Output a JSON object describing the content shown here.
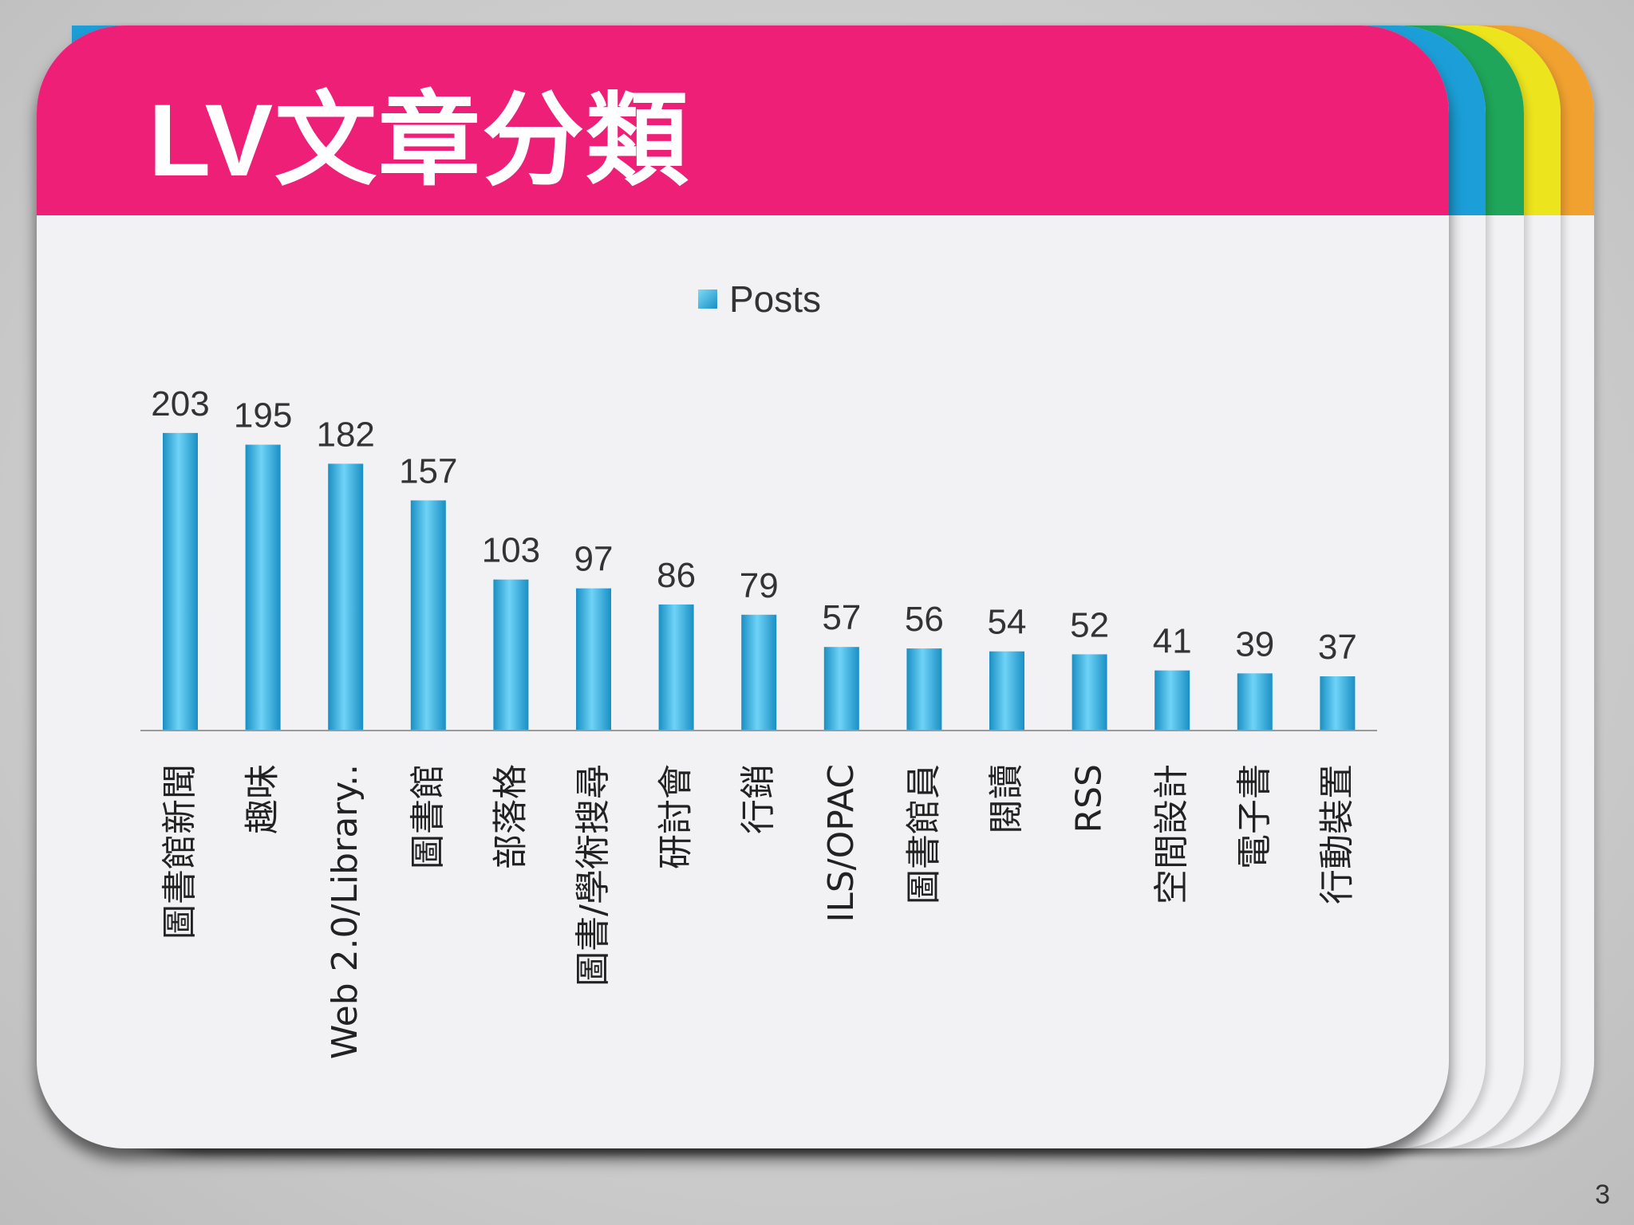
{
  "slide": {
    "title": "LV文章分類",
    "page_number": "3"
  },
  "colors": {
    "title_bar": "#ee1f77",
    "tab_blue": "#1c9fd8",
    "tab_green": "#1fa65a",
    "tab_yellow": "#ece51d",
    "tab_orange": "#f0a130",
    "bar": "#29b1e6"
  },
  "chart_data": {
    "type": "bar",
    "series": [
      {
        "name": "Posts",
        "values": [
          203,
          195,
          182,
          157,
          103,
          97,
          86,
          79,
          57,
          56,
          54,
          52,
          41,
          39,
          37
        ]
      }
    ],
    "categories": [
      "圖書館新聞",
      "趣味",
      "Web 2.0/Library..",
      "圖書館",
      "部落格",
      "圖書/學術搜尋",
      "研討會",
      "行銷",
      "ILS/OPAC",
      "圖書館員",
      "閱讀",
      "RSS",
      "空間設計",
      "電子書",
      "行動裝置"
    ],
    "legend": "top-center",
    "grid": false,
    "ylim": [
      0,
      210
    ]
  }
}
